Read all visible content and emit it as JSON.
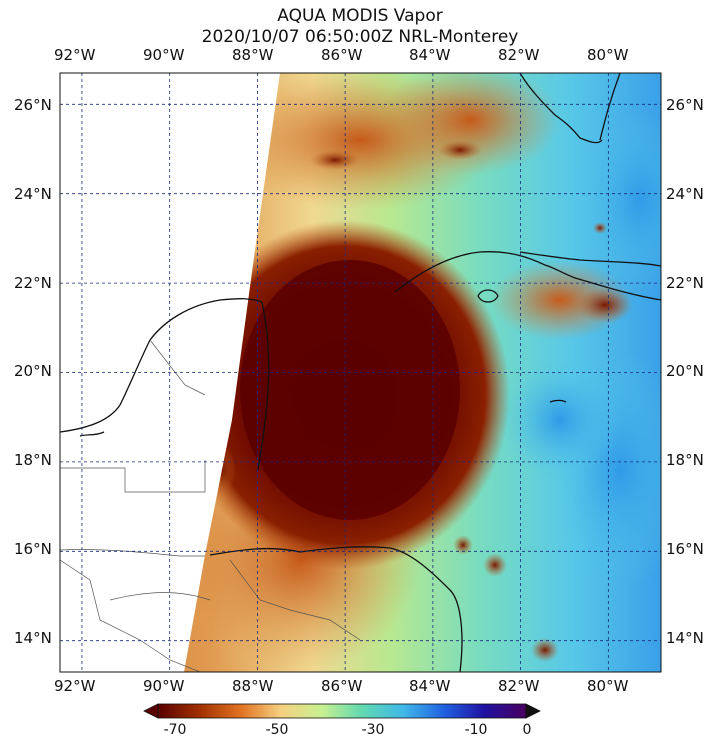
{
  "title_line1": "AQUA MODIS Vapor",
  "title_line2": "2020/10/07 06:50:00Z NRL-Monterey",
  "map": {
    "lon_range": [
      -92.5,
      -78.8
    ],
    "lat_range": [
      13.3,
      26.7
    ],
    "lon_ticks": [
      "92°W",
      "90°W",
      "88°W",
      "86°W",
      "84°W",
      "82°W",
      "80°W"
    ],
    "lat_ticks": [
      "26°N",
      "24°N",
      "22°N",
      "20°N",
      "18°N",
      "16°N",
      "14°N"
    ],
    "gridlines": "dashed navy"
  },
  "colorbar": {
    "labels": [
      "-70",
      "-50",
      "-30",
      "-10",
      "0"
    ],
    "range": [
      -70,
      0
    ],
    "colors": [
      "#5a0000",
      "#a03000",
      "#e07020",
      "#f5d080",
      "#c8f090",
      "#60d8b0",
      "#40b8e8",
      "#2060e0",
      "#2010a0",
      "#4b0060"
    ]
  }
}
